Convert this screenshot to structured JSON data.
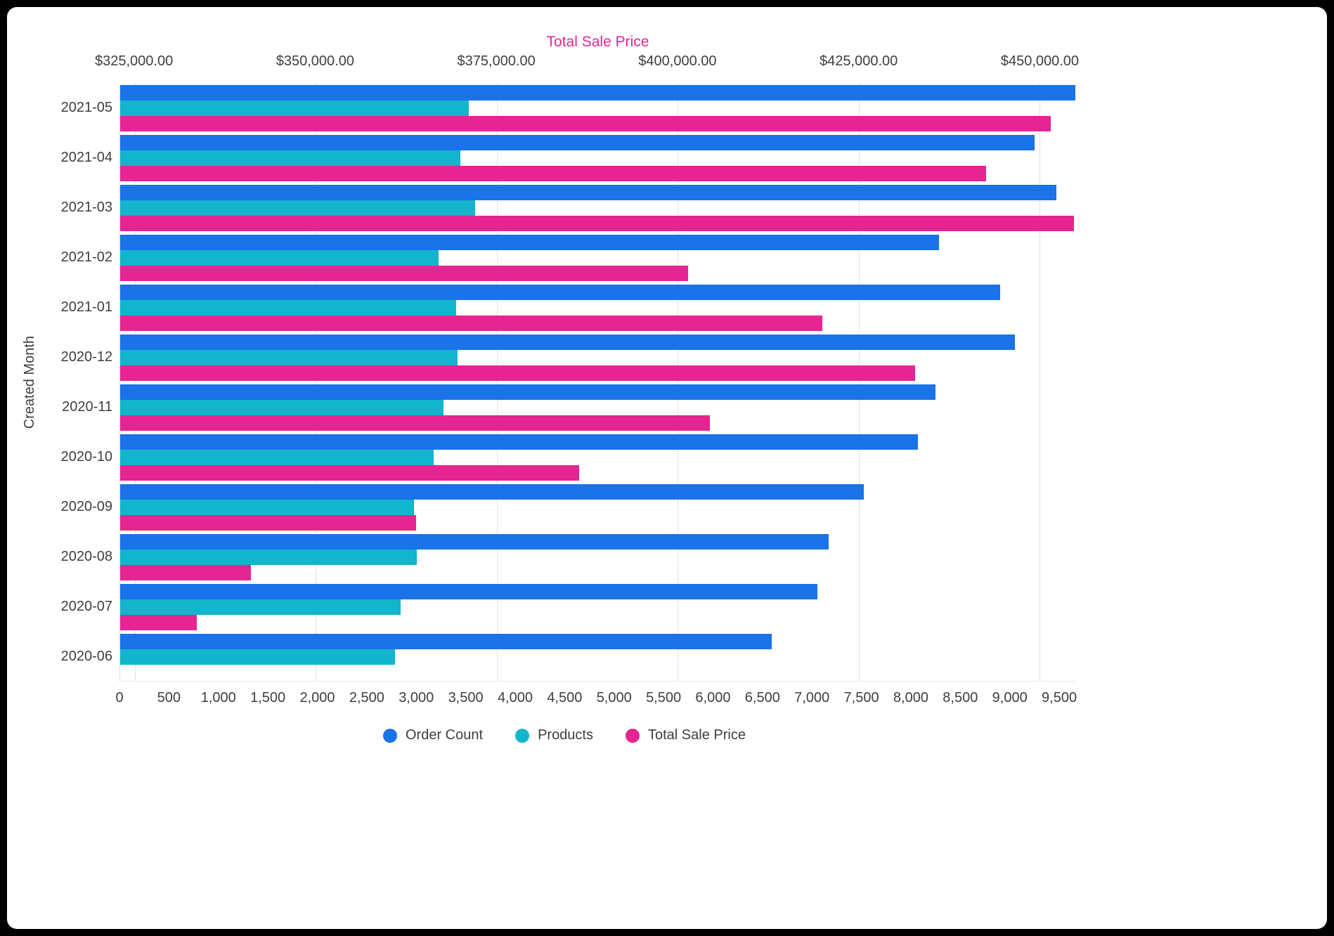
{
  "window": {
    "background": "#000000",
    "card_background": "#ffffff"
  },
  "chart_data": {
    "type": "bar",
    "orientation": "horizontal",
    "title": "Total Sale Price",
    "ylabel": "Created Month",
    "grid": true,
    "legend_position": "bottom",
    "categories": [
      "2021-05",
      "2021-04",
      "2021-03",
      "2021-02",
      "2021-01",
      "2020-12",
      "2020-11",
      "2020-10",
      "2020-09",
      "2020-08",
      "2020-07",
      "2020-06"
    ],
    "series": [
      {
        "name": "Order Count",
        "axis": "bottom",
        "color": "#1A73E8",
        "values": [
          9660,
          9250,
          9470,
          8280,
          8900,
          9050,
          8250,
          8070,
          7520,
          7170,
          7050,
          6590
        ]
      },
      {
        "name": "Products",
        "axis": "bottom",
        "color": "#12B5CB",
        "values": [
          3530,
          3440,
          3590,
          3220,
          3400,
          3410,
          3270,
          3170,
          2970,
          3000,
          2840,
          2780
        ]
      },
      {
        "name": "Total Sale Price",
        "axis": "top",
        "color": "#E52592",
        "values": [
          451500,
          442600,
          454700,
          401400,
          420000,
          432800,
          404400,
          386400,
          363900,
          341100,
          333600,
          null
        ]
      }
    ],
    "bottom_axis": {
      "min": 0,
      "max": 9670,
      "ticks": [
        0,
        500,
        1000,
        1500,
        2000,
        2500,
        3000,
        3500,
        4000,
        4500,
        5000,
        5500,
        6000,
        6500,
        7000,
        7500,
        8000,
        8500,
        9000,
        9500
      ],
      "tick_labels": [
        "0",
        "500",
        "1,000",
        "1,500",
        "2,000",
        "2,500",
        "3,000",
        "3,500",
        "4,000",
        "4,500",
        "5,000",
        "5,500",
        "6,000",
        "6,500",
        "7,000",
        "7,500",
        "8,000",
        "8,500",
        "9,000",
        "9,500"
      ]
    },
    "top_axis": {
      "min": 323000,
      "max": 455000,
      "ticks": [
        325000,
        350000,
        375000,
        400000,
        425000,
        450000
      ],
      "tick_labels": [
        "$325,000.00",
        "$350,000.00",
        "$375,000.00",
        "$400,000.00",
        "$425,000.00",
        "$450,000.00"
      ]
    },
    "legend": [
      {
        "label": "Order Count",
        "color": "#1A73E8"
      },
      {
        "label": "Products",
        "color": "#12B5CB"
      },
      {
        "label": "Total Sale Price",
        "color": "#E52592"
      }
    ]
  }
}
